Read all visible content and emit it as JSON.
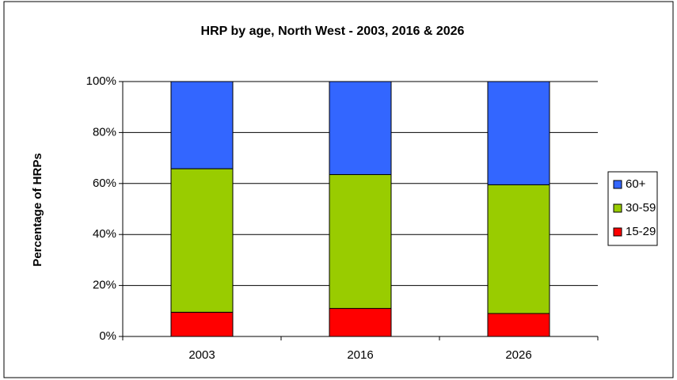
{
  "chart_data": {
    "type": "stacked_bar",
    "title": "HRP by age, North West - 2003, 2016 & 2026",
    "y_label": "Percentage of HRPs",
    "categories": [
      "2003",
      "2016",
      "2026"
    ],
    "series": [
      {
        "name": "15-29",
        "color": "#ff0000",
        "values": [
          9.5,
          11,
          9
        ]
      },
      {
        "name": "30-59",
        "color": "#99cc00",
        "values": [
          56.3,
          52.5,
          50.5
        ]
      },
      {
        "name": "60+",
        "color": "#3366ff",
        "values": [
          34.2,
          36.5,
          40.5
        ]
      }
    ],
    "ylim": [
      0,
      100
    ],
    "yticks": [
      {
        "value": 0,
        "label": "0%"
      },
      {
        "value": 20,
        "label": "20%"
      },
      {
        "value": 40,
        "label": "40%"
      },
      {
        "value": 60,
        "label": "60%"
      },
      {
        "value": 80,
        "label": "80%"
      },
      {
        "value": 100,
        "label": "100%"
      }
    ],
    "grid": true,
    "legend": "right"
  }
}
